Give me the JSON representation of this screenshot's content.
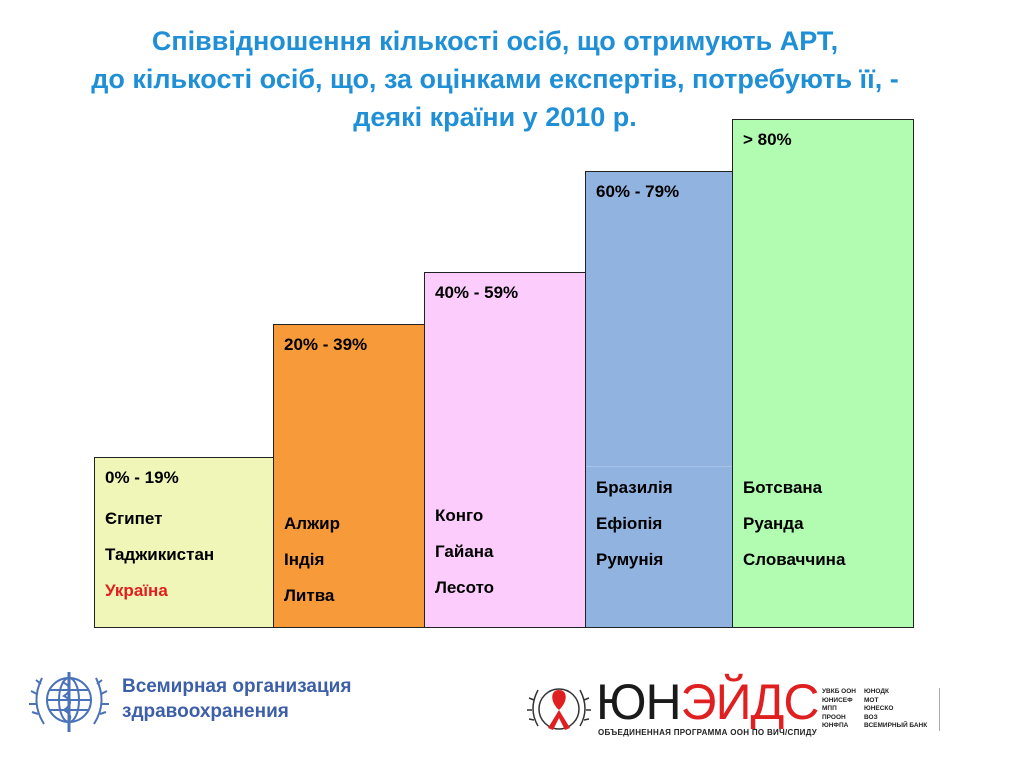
{
  "title": {
    "line1": "Співвідношення кількості осіб, що отримують АРТ,",
    "line2": "до кількості осіб, що, за оцінками експертів, потребують її, -",
    "line3": "деякі країни у 2010 р."
  },
  "colors": {
    "title": "#1f8fd6",
    "highlight": "#e02020"
  },
  "chart_data": {
    "type": "bar",
    "categories": [
      "0% - 19%",
      "20% - 39%",
      "40% - 59%",
      "60% - 79%",
      "> 80%"
    ],
    "values": [
      1,
      2,
      3,
      4,
      5
    ],
    "colors": [
      "#f0f5b8",
      "#f79a3a",
      "#fcccfc",
      "#91b3e0",
      "#b1fcb1"
    ],
    "groups": [
      {
        "range": "0% - 19%",
        "countries": [
          "Єгипет",
          "Таджикистан",
          "Україна"
        ],
        "highlight": "Україна"
      },
      {
        "range": "20% - 39%",
        "countries": [
          "Алжир",
          "Індія",
          "Литва"
        ]
      },
      {
        "range": "40% - 59%",
        "countries": [
          "Конго",
          "Гайана",
          "Лесото"
        ]
      },
      {
        "range": "60% - 79%",
        "countries": [
          "Бразилія",
          "Ефіопія",
          "Румунія"
        ]
      },
      {
        "range": "> 80%",
        "countries": [
          "Ботсвана",
          "Руанда",
          "Словаччина"
        ]
      }
    ]
  },
  "logos": {
    "who_line1": "Всемирная организация",
    "who_line2": "здравоохранения",
    "unaids_black1": "ЮН",
    "unaids_red": "ЭЙДС",
    "unaids_sub": "ОБЪЕДИНЕННАЯ ПРОГРАММА ООН ПО ВИЧ/СПИДУ",
    "partners_col1": [
      "УВКБ ООН",
      "ЮНИСЕФ",
      "МПП",
      "ПРООН",
      "ЮНФПА"
    ],
    "partners_col2": [
      "ЮНОДК",
      "МОТ",
      "ЮНЕСКО",
      "ВОЗ",
      "ВСЕМИРНЫЙ БАНК"
    ]
  }
}
